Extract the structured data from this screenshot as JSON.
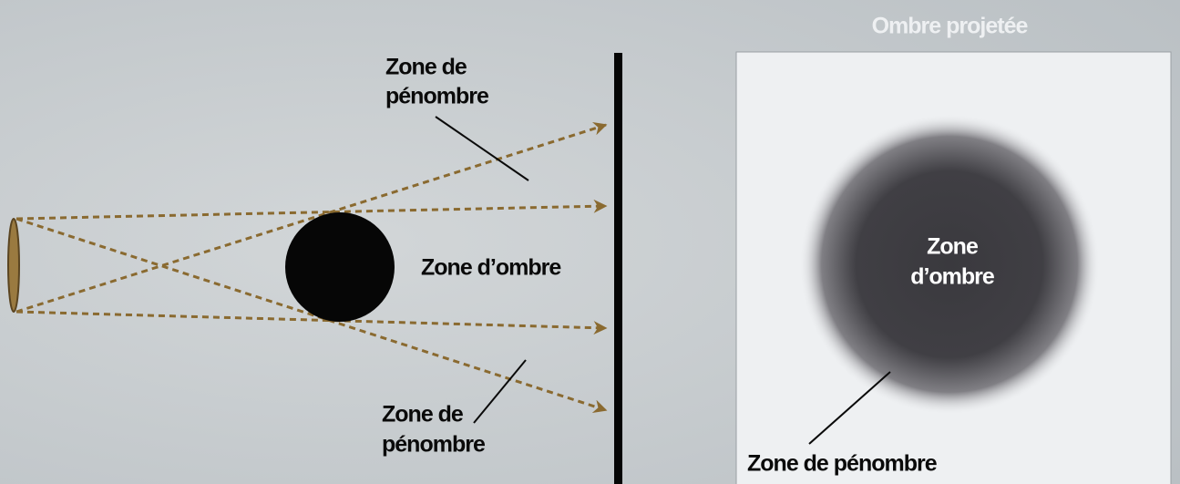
{
  "title": "Ombre projetée",
  "left_diagram": {
    "upper_penumbra_label": [
      "Zone de",
      "pénombre"
    ],
    "umbra_label": "Zone d’ombre",
    "lower_penumbra_label": [
      "Zone de",
      "pénombre"
    ]
  },
  "right_panel": {
    "umbra_label": [
      "Zone",
      "d’ombre"
    ],
    "penumbra_label": "Zone de pénombre"
  }
}
